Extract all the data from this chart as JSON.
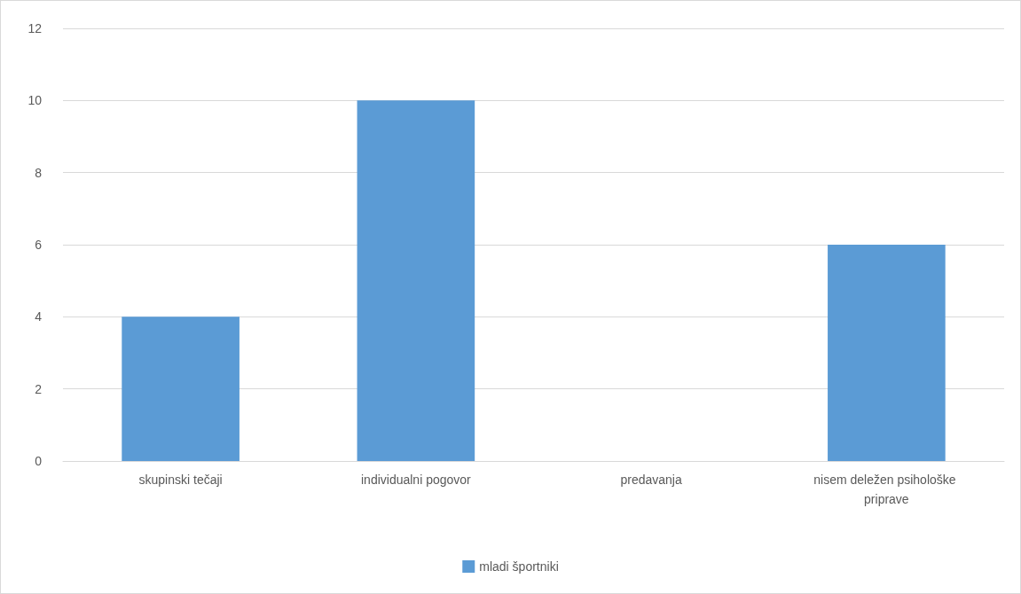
{
  "chart_data": {
    "type": "bar",
    "categories": [
      "skupinski tečaji",
      "individualni pogovor",
      "predavanja",
      "nisem deležen psihološke priprave"
    ],
    "series": [
      {
        "name": "mladi športniki",
        "color": "#5b9bd5",
        "values": [
          4,
          10,
          0,
          6
        ]
      }
    ],
    "ylim": [
      0,
      12
    ],
    "yticks": [
      0,
      2,
      4,
      6,
      8,
      10,
      12
    ],
    "grid": "y",
    "legend": "bottom"
  }
}
